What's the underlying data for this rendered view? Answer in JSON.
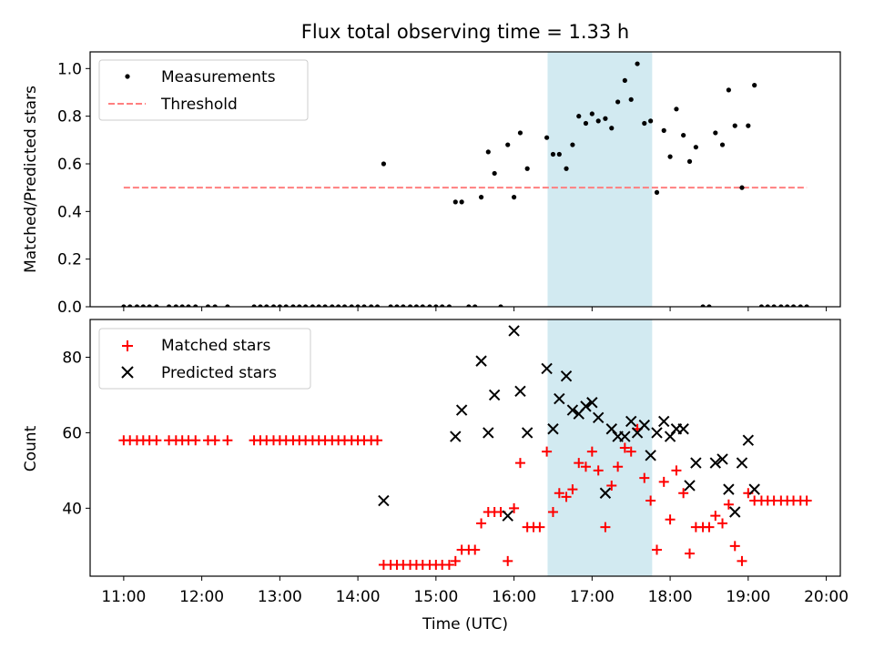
{
  "figure": {
    "title": "Flux total observing time = 1.33 h",
    "xlabel": "Time (UTC)",
    "x_ticks": [
      "11:00",
      "12:00",
      "13:00",
      "14:00",
      "15:00",
      "16:00",
      "17:00",
      "18:00",
      "19:00",
      "20:00"
    ],
    "x_tick_hours": [
      11,
      12,
      13,
      14,
      15,
      16,
      17,
      18,
      19,
      20
    ],
    "shaded_region": {
      "start_hour": 16.43,
      "end_hour": 17.77,
      "color": "#add8e6"
    }
  },
  "chart_data": [
    {
      "type": "scatter",
      "ylabel": "Matched/Predicted stars",
      "ylim": [
        0,
        1.07
      ],
      "xlim_hours": [
        10.57,
        20.18
      ],
      "y_ticks": [
        "0.0",
        "0.2",
        "0.4",
        "0.6",
        "0.8",
        "1.0"
      ],
      "y_tick_values": [
        0,
        0.2,
        0.4,
        0.6,
        0.8,
        1.0
      ],
      "legend": {
        "position": "top-left",
        "entries": [
          "Measurements",
          "Threshold"
        ]
      },
      "threshold": {
        "name": "Threshold",
        "value": 0.5,
        "x_start_hour": 11.0,
        "x_end_hour": 19.75,
        "color": "#ff7f7f",
        "style": "dashed"
      },
      "series": [
        {
          "name": "Measurements",
          "color": "#000000",
          "x_hours": [
            11.0,
            11.08,
            11.17,
            11.25,
            11.33,
            11.42,
            11.58,
            11.67,
            11.75,
            11.83,
            11.92,
            12.08,
            12.17,
            12.33,
            12.67,
            12.75,
            12.83,
            12.92,
            13.0,
            13.08,
            13.17,
            13.25,
            13.33,
            13.42,
            13.5,
            13.58,
            13.67,
            13.75,
            13.83,
            13.92,
            14.0,
            14.08,
            14.17,
            14.25,
            14.33,
            14.42,
            14.5,
            14.58,
            14.67,
            14.75,
            14.83,
            14.92,
            15.0,
            15.08,
            15.17,
            15.25,
            15.33,
            15.42,
            15.5,
            15.58,
            15.67,
            15.75,
            15.83,
            15.92,
            16.0,
            16.08,
            16.17,
            16.42,
            16.5,
            16.58,
            16.67,
            16.75,
            16.83,
            16.92,
            17.0,
            17.08,
            17.17,
            17.25,
            17.33,
            17.42,
            17.5,
            17.58,
            17.67,
            17.75,
            17.83,
            17.92,
            18.0,
            18.08,
            18.17,
            18.25,
            18.33,
            18.42,
            18.5,
            18.58,
            18.67,
            18.75,
            18.83,
            18.92,
            19.0,
            19.08,
            19.17,
            19.25,
            19.33,
            19.42,
            19.5,
            19.58,
            19.67,
            19.75
          ],
          "y": [
            0,
            0,
            0,
            0,
            0,
            0,
            0,
            0,
            0,
            0,
            0,
            0,
            0,
            0,
            0,
            0,
            0,
            0,
            0,
            0,
            0,
            0,
            0,
            0,
            0,
            0,
            0,
            0,
            0,
            0,
            0,
            0,
            0,
            0,
            0.6,
            0,
            0,
            0,
            0,
            0,
            0,
            0,
            0,
            0,
            0,
            0.44,
            0.44,
            0,
            0,
            0.46,
            0.65,
            0.56,
            0,
            0.68,
            0.46,
            0.73,
            0.58,
            0.71,
            0.64,
            0.64,
            0.58,
            0.68,
            0.8,
            0.77,
            0.81,
            0.78,
            0.79,
            0.75,
            0.86,
            0.95,
            0.87,
            1.02,
            0.77,
            0.78,
            0.48,
            0.74,
            0.63,
            0.83,
            0.72,
            0.61,
            0.67,
            0,
            0,
            0.73,
            0.68,
            0.91,
            0.76,
            0.5,
            0.76,
            0.93,
            0,
            0,
            0,
            0,
            0,
            0,
            0,
            0
          ]
        }
      ]
    },
    {
      "type": "scatter",
      "ylabel": "Count",
      "ylim": [
        22,
        90
      ],
      "xlim_hours": [
        10.57,
        20.18
      ],
      "y_ticks": [
        "40",
        "60",
        "80"
      ],
      "y_tick_values": [
        40,
        60,
        80
      ],
      "legend": {
        "position": "top-left",
        "entries": [
          "Matched stars",
          "Predicted stars"
        ]
      },
      "series": [
        {
          "name": "Matched stars",
          "marker": "+",
          "color": "#ff0000",
          "x_hours": [
            11.0,
            11.08,
            11.17,
            11.25,
            11.33,
            11.42,
            11.58,
            11.67,
            11.75,
            11.83,
            11.92,
            12.08,
            12.17,
            12.33,
            12.67,
            12.75,
            12.83,
            12.92,
            13.0,
            13.08,
            13.17,
            13.25,
            13.33,
            13.42,
            13.5,
            13.58,
            13.67,
            13.75,
            13.83,
            13.92,
            14.0,
            14.08,
            14.17,
            14.25,
            14.33,
            14.42,
            14.5,
            14.58,
            14.67,
            14.75,
            14.83,
            14.92,
            15.0,
            15.08,
            15.17,
            15.25,
            15.33,
            15.42,
            15.5,
            15.58,
            15.67,
            15.75,
            15.83,
            15.92,
            16.0,
            16.08,
            16.17,
            16.25,
            16.33,
            16.42,
            16.5,
            16.58,
            16.67,
            16.75,
            16.83,
            16.92,
            17.0,
            17.08,
            17.17,
            17.25,
            17.33,
            17.42,
            17.5,
            17.58,
            17.67,
            17.75,
            17.83,
            17.92,
            18.0,
            18.08,
            18.17,
            18.25,
            18.33,
            18.42,
            18.5,
            18.58,
            18.67,
            18.75,
            18.83,
            18.92,
            19.0,
            19.08,
            19.17,
            19.25,
            19.33,
            19.42,
            19.5,
            19.58,
            19.67,
            19.75
          ],
          "y": [
            58,
            58,
            58,
            58,
            58,
            58,
            58,
            58,
            58,
            58,
            58,
            58,
            58,
            58,
            58,
            58,
            58,
            58,
            58,
            58,
            58,
            58,
            58,
            58,
            58,
            58,
            58,
            58,
            58,
            58,
            58,
            58,
            58,
            58,
            25,
            25,
            25,
            25,
            25,
            25,
            25,
            25,
            25,
            25,
            25,
            26,
            29,
            29,
            29,
            36,
            39,
            39,
            39,
            26,
            40,
            52,
            35,
            35,
            35,
            55,
            39,
            44,
            43,
            45,
            52,
            51,
            55,
            50,
            35,
            46,
            51,
            56,
            55,
            61,
            48,
            42,
            29,
            47,
            37,
            50,
            44,
            28,
            35,
            35,
            35,
            38,
            36,
            41,
            30,
            26,
            44,
            42,
            42,
            42,
            42,
            42,
            42,
            42,
            42,
            42
          ]
        },
        {
          "name": "Predicted stars",
          "marker": "x",
          "color": "#000000",
          "x_hours": [
            14.33,
            15.25,
            15.33,
            15.58,
            15.67,
            15.75,
            15.92,
            16.0,
            16.08,
            16.17,
            16.42,
            16.5,
            16.58,
            16.67,
            16.75,
            16.83,
            16.92,
            17.0,
            17.08,
            17.17,
            17.25,
            17.33,
            17.42,
            17.5,
            17.58,
            17.67,
            17.75,
            17.83,
            17.92,
            18.0,
            18.08,
            18.17,
            18.25,
            18.33,
            18.58,
            18.67,
            18.75,
            18.83,
            18.92,
            19.0,
            19.08
          ],
          "y": [
            42,
            59,
            66,
            79,
            60,
            70,
            38,
            87,
            71,
            60,
            77,
            61,
            69,
            75,
            66,
            65,
            67,
            68,
            64,
            44,
            61,
            59,
            59,
            63,
            60,
            62,
            54,
            60,
            63,
            59,
            61,
            61,
            46,
            52,
            52,
            53,
            45,
            39,
            52,
            58,
            45
          ]
        }
      ]
    }
  ]
}
